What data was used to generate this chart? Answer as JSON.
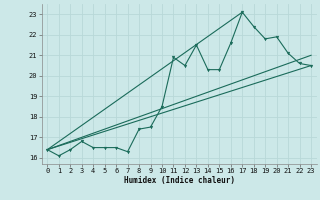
{
  "title": "",
  "xlabel": "Humidex (Indice chaleur)",
  "ylabel": "",
  "bg_color": "#cce8e8",
  "grid_color": "#b8d8d8",
  "line_color": "#1a6b5a",
  "xlim": [
    -0.5,
    23.5
  ],
  "ylim": [
    15.7,
    23.5
  ],
  "xticks": [
    0,
    1,
    2,
    3,
    4,
    5,
    6,
    7,
    8,
    9,
    10,
    11,
    12,
    13,
    14,
    15,
    16,
    17,
    18,
    19,
    20,
    21,
    22,
    23
  ],
  "yticks": [
    16,
    17,
    18,
    19,
    20,
    21,
    22,
    23
  ],
  "main_line": {
    "x": [
      0,
      1,
      2,
      3,
      4,
      5,
      6,
      7,
      8,
      9,
      10,
      11,
      12,
      13,
      14,
      15,
      16,
      17,
      18,
      19,
      20,
      21,
      22,
      23
    ],
    "y": [
      16.4,
      16.1,
      16.4,
      16.8,
      16.5,
      16.5,
      16.5,
      16.3,
      17.4,
      17.5,
      18.5,
      20.9,
      20.5,
      21.5,
      20.3,
      20.3,
      21.6,
      23.1,
      22.4,
      21.8,
      21.9,
      21.1,
      20.6,
      20.5
    ]
  },
  "trend_lines": [
    {
      "x": [
        0,
        23
      ],
      "y": [
        16.4,
        20.5
      ]
    },
    {
      "x": [
        0,
        17
      ],
      "y": [
        16.4,
        23.1
      ]
    },
    {
      "x": [
        0,
        23
      ],
      "y": [
        16.4,
        21.0
      ]
    }
  ]
}
